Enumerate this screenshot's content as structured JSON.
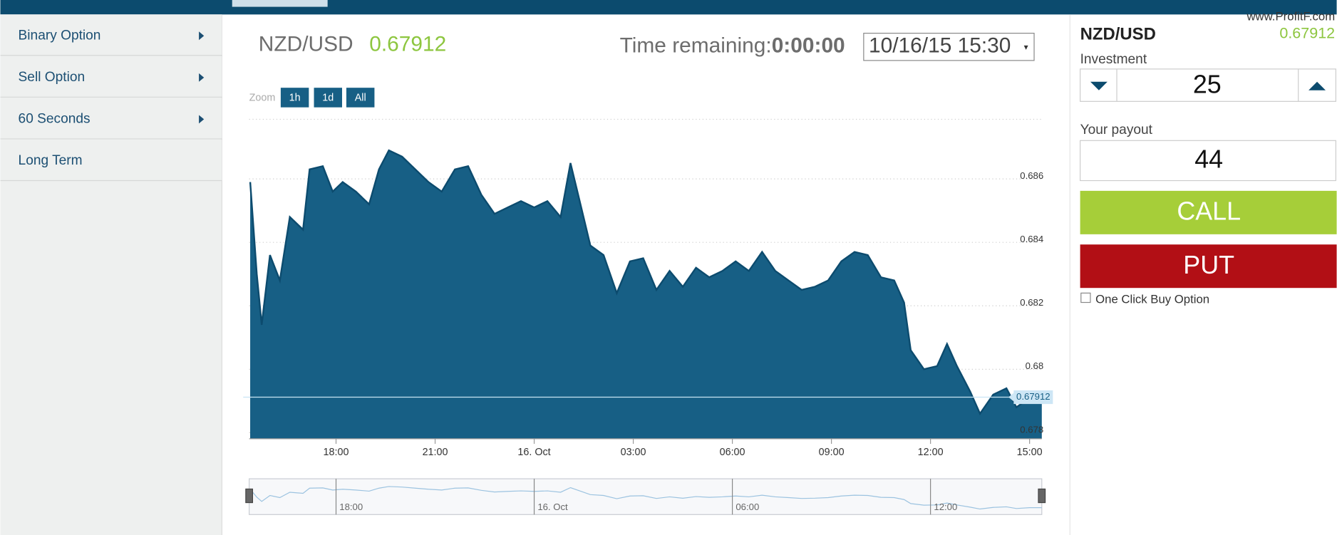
{
  "menu": [
    "Binary Option",
    "Sell Option",
    "60 Seconds",
    "Long Term"
  ],
  "pair": "NZD/USD",
  "price": 0.67912,
  "time_remaining_label": "Time remaining:",
  "time_remaining": "0:00:00",
  "expiry": "10/16/15 15:30",
  "zoom": {
    "label": "Zoom",
    "buttons": [
      "1h",
      "1d",
      "All"
    ]
  },
  "watermark": "www.ProfitF.com",
  "investment_label": "Investment",
  "investment": 25,
  "payout_label": "Your payout",
  "payout": 44,
  "call": "CALL",
  "put": "PUT",
  "one_click": "One Click Buy Option",
  "chart_data": {
    "type": "area",
    "color": "#175f85",
    "x": [
      15.4,
      15.6,
      15.75,
      16.0,
      16.3,
      16.6,
      17.0,
      17.2,
      17.6,
      17.9,
      18.2,
      18.6,
      19.0,
      19.3,
      19.6,
      20.0,
      20.4,
      20.8,
      21.2,
      21.6,
      22.0,
      22.4,
      22.8,
      23.2,
      23.6,
      24.0,
      24.4,
      24.8,
      25.1,
      25.4,
      25.7,
      26.1,
      26.5,
      26.9,
      27.3,
      27.7,
      28.1,
      28.5,
      28.9,
      29.3,
      29.7,
      30.1,
      30.5,
      30.9,
      31.3,
      31.7,
      32.1,
      32.5,
      32.9,
      33.3,
      33.7,
      34.1,
      34.5,
      34.9,
      35.2,
      35.4,
      35.8,
      36.2,
      36.5,
      36.8,
      37.2,
      37.5,
      37.9,
      38.3,
      38.6,
      39.0,
      39.37
    ],
    "values": [
      0.6859,
      0.683,
      0.6814,
      0.6836,
      0.6828,
      0.6848,
      0.6844,
      0.6863,
      0.6864,
      0.6856,
      0.6859,
      0.6856,
      0.6852,
      0.6863,
      0.6869,
      0.6867,
      0.6863,
      0.6859,
      0.6856,
      0.6863,
      0.6864,
      0.6855,
      0.6849,
      0.6851,
      0.6853,
      0.6851,
      0.6853,
      0.6848,
      0.6865,
      0.6852,
      0.6839,
      0.6836,
      0.6824,
      0.6834,
      0.6835,
      0.6825,
      0.6831,
      0.6826,
      0.6832,
      0.6829,
      0.6831,
      0.6834,
      0.6831,
      0.6837,
      0.6831,
      0.6828,
      0.6825,
      0.6826,
      0.6828,
      0.6834,
      0.6837,
      0.6836,
      0.6829,
      0.6828,
      0.6821,
      0.6806,
      0.68,
      0.6801,
      0.6808,
      0.6801,
      0.6793,
      0.6786,
      0.6792,
      0.6794,
      0.6788,
      0.6791,
      0.6791
    ],
    "xlim": [
      15.37,
      39.37
    ],
    "ylim": [
      0.67781,
      0.68788
    ],
    "yticks": [
      0.678,
      0.68,
      0.682,
      0.684,
      0.686
    ],
    "xticks": [
      {
        "value": 18,
        "label": "18:00"
      },
      {
        "value": 21,
        "label": "21:00"
      },
      {
        "value": 24,
        "label": "16. Oct"
      },
      {
        "value": 27,
        "label": "03:00"
      },
      {
        "value": 30,
        "label": "06:00"
      },
      {
        "value": 33,
        "label": "09:00"
      },
      {
        "value": 36,
        "label": "12:00"
      },
      {
        "value": 39,
        "label": "15:00"
      }
    ],
    "navigator_xticks": [
      {
        "value": 18,
        "label": "18:00"
      },
      {
        "value": 24,
        "label": "16. Oct"
      },
      {
        "value": 30,
        "label": "06:00"
      },
      {
        "value": 36,
        "label": "12:00"
      }
    ],
    "grid": true
  }
}
